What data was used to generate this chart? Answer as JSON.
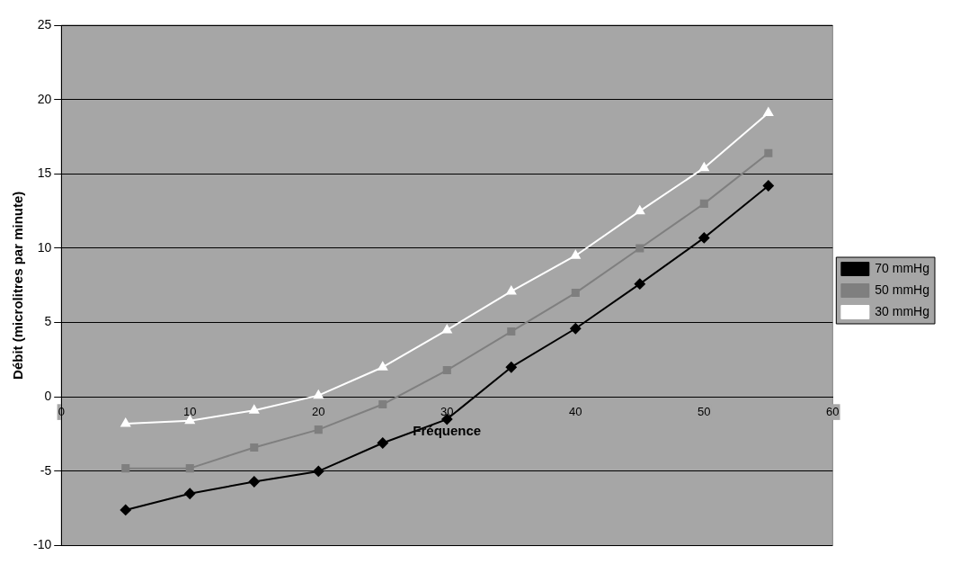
{
  "chart_data": {
    "type": "line",
    "xlabel": "Fréquence",
    "ylabel": "Débit (microlitres par minute)",
    "x": [
      5,
      10,
      15,
      20,
      25,
      30,
      35,
      40,
      45,
      50,
      55
    ],
    "series": [
      {
        "name": "70 mmHg",
        "color": "#000000",
        "marker": "diamond",
        "values": [
          -7.6,
          -6.5,
          -5.7,
          -5.0,
          -3.1,
          -1.5,
          2.0,
          4.6,
          7.6,
          10.7,
          14.2
        ]
      },
      {
        "name": "50 mmHg",
        "color": "#7f7f7f",
        "marker": "square",
        "values": [
          -4.8,
          -4.8,
          -3.4,
          -2.2,
          -0.5,
          1.8,
          4.4,
          7.0,
          10.0,
          13.0,
          16.4
        ]
      },
      {
        "name": "30 mmHg",
        "color": "#ffffff",
        "marker": "triangle",
        "values": [
          -1.8,
          -1.6,
          -0.9,
          0.1,
          2.0,
          4.5,
          7.1,
          9.5,
          12.5,
          15.4,
          19.1
        ]
      }
    ],
    "xlim": [
      0,
      60
    ],
    "xticks": [
      0,
      10,
      20,
      30,
      40,
      50,
      60
    ],
    "ylim": [
      -10,
      25
    ],
    "yticks": [
      -10,
      -5,
      0,
      5,
      10,
      15,
      20,
      25
    ],
    "grid": "y",
    "legend": "right"
  }
}
